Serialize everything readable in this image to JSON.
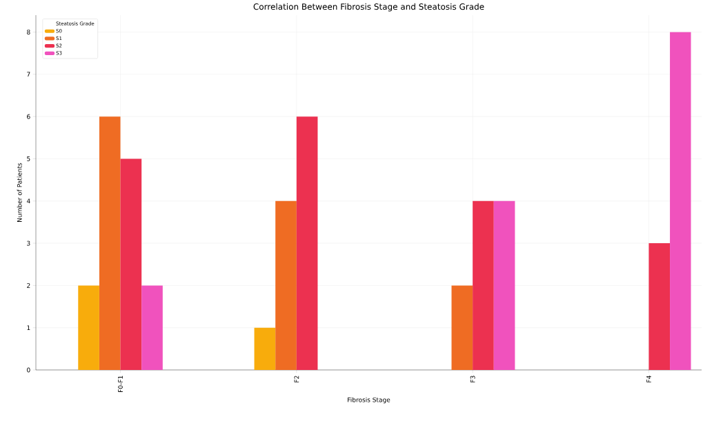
{
  "chart_data": {
    "type": "bar",
    "title": "Correlation Between Fibrosis Stage and Steatosis Grade",
    "xlabel": "Fibrosis Stage",
    "ylabel": "Number of Patients",
    "legend_title": "Steatosis Grade",
    "categories": [
      "F0-F1",
      "F2",
      "F3",
      "F4"
    ],
    "series": [
      {
        "name": "S0",
        "color": "#f8ac0c",
        "values": [
          2,
          1,
          0,
          0
        ]
      },
      {
        "name": "S1",
        "color": "#ef6c23",
        "values": [
          6,
          4,
          2,
          0
        ]
      },
      {
        "name": "S2",
        "color": "#ec3150",
        "values": [
          5,
          6,
          4,
          3
        ]
      },
      {
        "name": "S3",
        "color": "#f052bd",
        "values": [
          2,
          0,
          4,
          8
        ]
      }
    ],
    "ylim": [
      0,
      8.4
    ],
    "yticks": [
      0,
      1,
      2,
      3,
      4,
      5,
      6,
      7,
      8
    ],
    "grid": true,
    "legend": "top left"
  }
}
